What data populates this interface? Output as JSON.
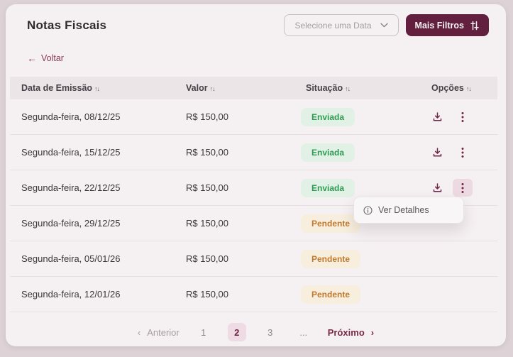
{
  "header": {
    "title": "Notas Fiscais",
    "date_filter": {
      "label": "Selecione uma Data"
    },
    "more_filters": {
      "label": "Mais Filtros"
    }
  },
  "back_link": {
    "label": "Voltar",
    "arrow": "←"
  },
  "table": {
    "columns": [
      {
        "label": "Data de Emissão"
      },
      {
        "label": "Valor"
      },
      {
        "label": "Situação"
      },
      {
        "label": "Opções"
      }
    ],
    "sort_glyph": "↑↓",
    "status_styles": {
      "Enviada": {
        "bg": "#e1f1e5",
        "text": "#2e9b53"
      },
      "Pendente": {
        "bg": "#f8eedd",
        "text": "#c07a30"
      }
    },
    "rows": [
      {
        "date": "Segunda-feira, 08/12/25",
        "value": "R$ 150,00",
        "status": "Enviada",
        "has_actions": true,
        "menu_open": false
      },
      {
        "date": "Segunda-feira, 15/12/25",
        "value": "R$ 150,00",
        "status": "Enviada",
        "has_actions": true,
        "menu_open": false
      },
      {
        "date": "Segunda-feira, 22/12/25",
        "value": "R$ 150,00",
        "status": "Enviada",
        "has_actions": true,
        "menu_open": true
      },
      {
        "date": "Segunda-feira, 29/12/25",
        "value": "R$ 150,00",
        "status": "Pendente",
        "has_actions": false,
        "menu_open": false
      },
      {
        "date": "Segunda-feira, 05/01/26",
        "value": "R$ 150,00",
        "status": "Pendente",
        "has_actions": false,
        "menu_open": false
      },
      {
        "date": "Segunda-feira, 12/01/26",
        "value": "R$ 150,00",
        "status": "Pendente",
        "has_actions": false,
        "menu_open": false
      }
    ]
  },
  "context_menu": {
    "items": [
      {
        "label": "Ver Detalhes",
        "icon": "info-icon"
      }
    ]
  },
  "pagination": {
    "previous": "Anterior",
    "next": "Próximo",
    "pages": [
      "1",
      "2",
      "3",
      "..."
    ],
    "active_page": "2",
    "prev_chevron": "‹",
    "next_chevron": "›"
  },
  "colors": {
    "brand": "#63203e",
    "page_bg": "#ddd3d7",
    "card_bg": "#f5f0f2",
    "link": "#8a3b58",
    "active_page_bg": "#eedbe4"
  }
}
